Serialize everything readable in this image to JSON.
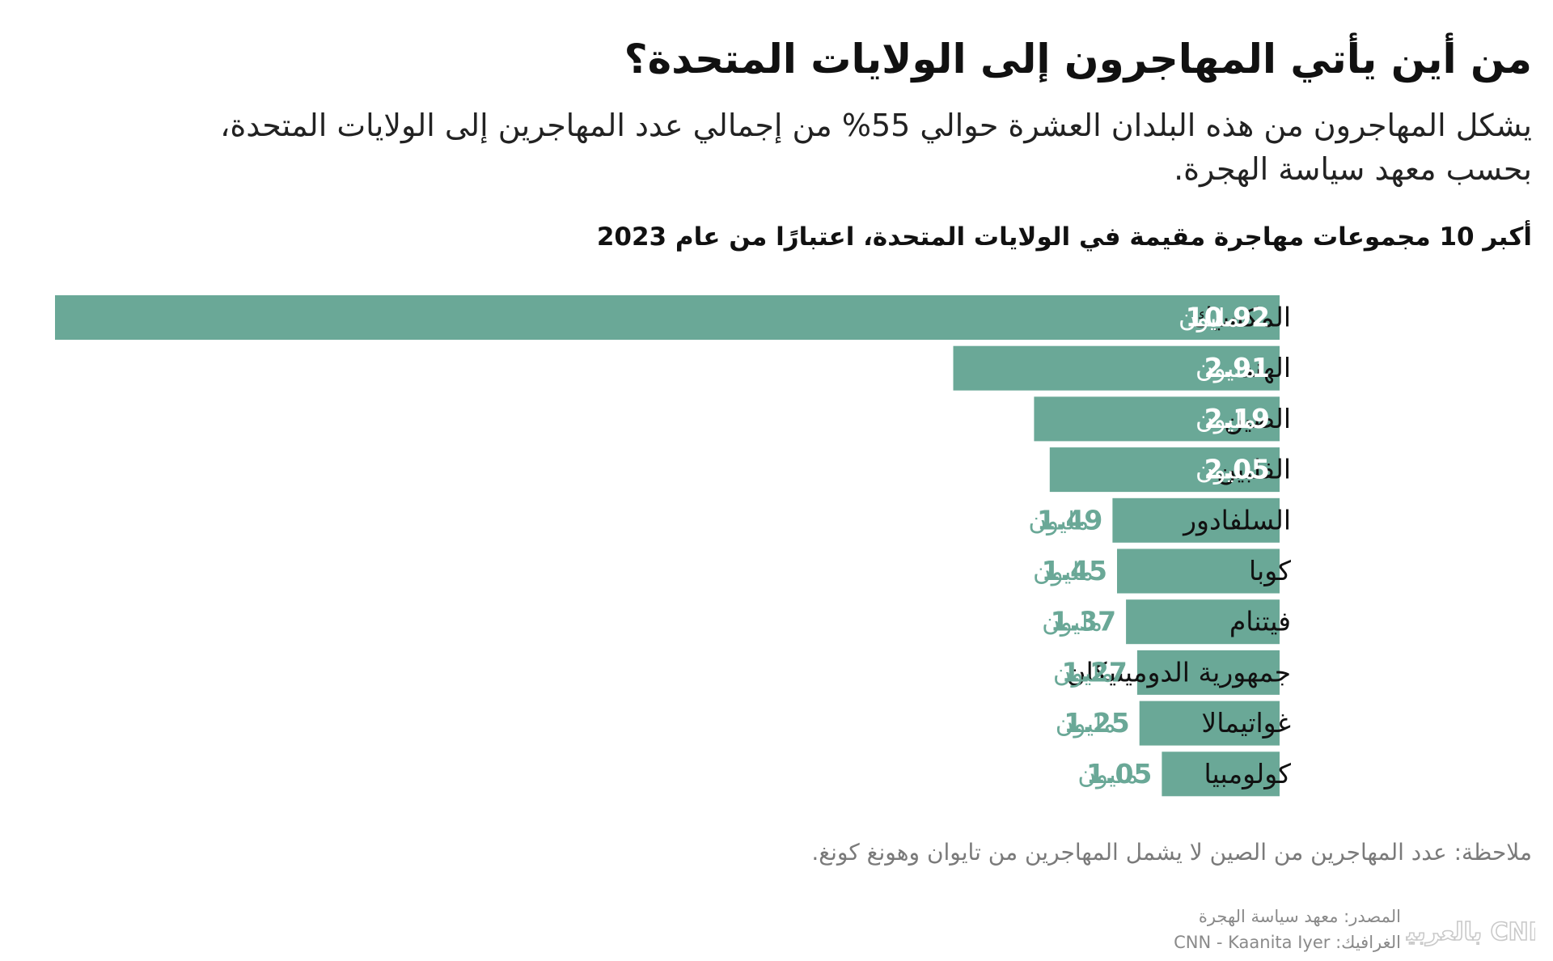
{
  "header": {
    "title": "من أين يأتي المهاجرون إلى الولايات المتحدة؟",
    "subtitle_line1": "يشكل المهاجرون من هذه البلدان العشرة حوالي 55% من إجمالي عدد المهاجرين إلى الولايات المتحدة،",
    "subtitle_line2": "بحسب معهد سياسة الهجرة."
  },
  "chart_data": {
    "type": "bar",
    "orientation": "horizontal",
    "title": "أكبر 10 مجموعات مهاجرة مقيمة في الولايات المتحدة، اعتبارًا من عام 2023",
    "unit": "مليون",
    "categories": [
      "المكسيك",
      "الهند",
      "الصين",
      "الفلبين",
      "السلفادور",
      "كوبا",
      "فيتنام",
      "جمهورية الدومينيكان",
      "غواتيمالا",
      "كولومبيا"
    ],
    "values": [
      10.92,
      2.91,
      2.19,
      2.05,
      1.49,
      1.45,
      1.37,
      1.27,
      1.25,
      1.05
    ],
    "value_labels": [
      "10.92",
      "2.91",
      "2.19",
      "2.05",
      "1.49",
      "1.45",
      "1.37",
      "1.27",
      "1.25",
      "1.05"
    ],
    "bar_color": "#6aa897",
    "label_inside_color": "#ffffff",
    "label_outside_color": "#6aa897",
    "grid": false,
    "legend": "none"
  },
  "footer": {
    "note": "ملاحظة: عدد المهاجرين من الصين لا يشمل المهاجرين من تايوان وهونغ كونغ.",
    "source": "المصدر: معهد سياسة الهجرة",
    "graphics": "الغرافيك: CNN - Kaanita Iyer",
    "logo_text": "CNN بالعربية"
  }
}
